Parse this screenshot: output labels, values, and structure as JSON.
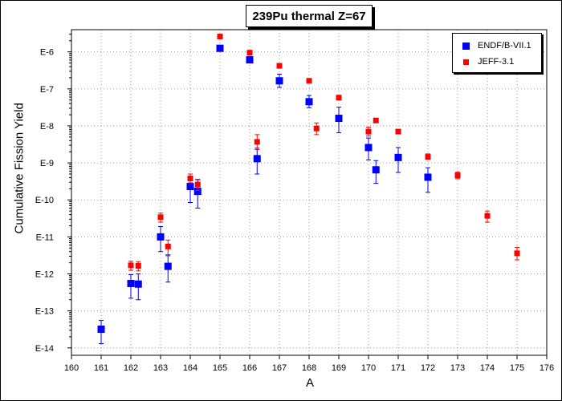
{
  "title": "239Pu thermal Z=67",
  "chart_data": {
    "type": "scatter",
    "title": "239Pu thermal Z=67",
    "xlabel": "A",
    "ylabel": "Cumulative Fission Yield",
    "xlim": [
      160,
      176
    ],
    "ylim_log10": [
      -14.2,
      -5.4
    ],
    "y_scale": "log",
    "x_ticks": [
      "160",
      "161",
      "162",
      "163",
      "164",
      "165",
      "166",
      "167",
      "168",
      "169",
      "170",
      "171",
      "172",
      "173",
      "174",
      "175",
      "176"
    ],
    "y_ticks": [
      {
        "exp": -6,
        "label": "E-6"
      },
      {
        "exp": -7,
        "label": "E-7"
      },
      {
        "exp": -8,
        "label": "E-8"
      },
      {
        "exp": -9,
        "label": "E-9"
      },
      {
        "exp": -10,
        "label": "E-10"
      },
      {
        "exp": -11,
        "label": "E-11"
      },
      {
        "exp": -12,
        "label": "E-12"
      },
      {
        "exp": -13,
        "label": "E-13"
      },
      {
        "exp": -14,
        "label": "E-14"
      }
    ],
    "grid": true,
    "legend_position": "top-right",
    "series": [
      {
        "name": "ENDF/B-VII.1",
        "color": "#0000ff",
        "marker": "square-large",
        "points": [
          {
            "x": 161,
            "y": 3.2e-14,
            "err_lo": 1.3e-14,
            "err_hi": 5.5e-14
          },
          {
            "x": 162,
            "y": 5.5e-13,
            "err_lo": 2.2e-13,
            "err_hi": 9.5e-13
          },
          {
            "x": 162.25,
            "y": 5.3e-13,
            "err_lo": 2e-13,
            "err_hi": 1e-12
          },
          {
            "x": 163,
            "y": 1e-11,
            "err_lo": 4e-12,
            "err_hi": 1.9e-11
          },
          {
            "x": 163.25,
            "y": 1.6e-12,
            "err_lo": 6e-13,
            "err_hi": 3.1e-12
          },
          {
            "x": 164,
            "y": 2.3e-10,
            "err_lo": 8.5e-11,
            "err_hi": 4.4e-10
          },
          {
            "x": 164.25,
            "y": 1.7e-10,
            "err_lo": 6e-11,
            "err_hi": 3.5e-10
          },
          {
            "x": 165,
            "y": 1.25e-06
          },
          {
            "x": 166,
            "y": 6.1e-07
          },
          {
            "x": 166.25,
            "y": 1.3e-09,
            "err_lo": 5e-10,
            "err_hi": 2.5e-09
          },
          {
            "x": 167,
            "y": 1.65e-07,
            "err_lo": 1.1e-07,
            "err_hi": 2.5e-07
          },
          {
            "x": 168,
            "y": 4.5e-08,
            "err_lo": 3.1e-08,
            "err_hi": 6.6e-08
          },
          {
            "x": 169,
            "y": 1.6e-08,
            "err_lo": 6.5e-09,
            "err_hi": 3.2e-08
          },
          {
            "x": 170,
            "y": 2.6e-09,
            "err_lo": 1.2e-09,
            "err_hi": 4.7e-09
          },
          {
            "x": 170.25,
            "y": 6.5e-10,
            "err_lo": 2.8e-10,
            "err_hi": 1.15e-09
          },
          {
            "x": 171,
            "y": 1.4e-09,
            "err_lo": 5.5e-10,
            "err_hi": 2.6e-09
          },
          {
            "x": 172,
            "y": 4.1e-10,
            "err_lo": 1.6e-10,
            "err_hi": 7.4e-10
          }
        ]
      },
      {
        "name": "JEFF-3.1",
        "color": "#ff0000",
        "marker": "square-small",
        "points": [
          {
            "x": 162,
            "y": 1.7e-12,
            "err_lo": 1.25e-12,
            "err_hi": 2.2e-12
          },
          {
            "x": 162.25,
            "y": 1.65e-12,
            "err_lo": 1.2e-12,
            "err_hi": 2.15e-12
          },
          {
            "x": 163,
            "y": 3.4e-11,
            "err_lo": 2.5e-11,
            "err_hi": 4.4e-11
          },
          {
            "x": 163.25,
            "y": 5.5e-12,
            "err_lo": 3.3e-12,
            "err_hi": 8.2e-12
          },
          {
            "x": 164,
            "y": 3.8e-10,
            "err_lo": 2.9e-10,
            "err_hi": 5e-10
          },
          {
            "x": 164.25,
            "y": 2.6e-10,
            "err_lo": 1.8e-10,
            "err_hi": 3.6e-10
          },
          {
            "x": 165,
            "y": 2.6e-06
          },
          {
            "x": 166,
            "y": 9.5e-07
          },
          {
            "x": 166.25,
            "y": 3.7e-09,
            "err_lo": 2.3e-09,
            "err_hi": 5.8e-09
          },
          {
            "x": 167,
            "y": 4.2e-07
          },
          {
            "x": 168,
            "y": 1.65e-07
          },
          {
            "x": 168.25,
            "y": 8.5e-09,
            "err_lo": 5.8e-09,
            "err_hi": 1.2e-08
          },
          {
            "x": 169,
            "y": 5.8e-08
          },
          {
            "x": 170,
            "y": 7e-09,
            "err_lo": 5.3e-09,
            "err_hi": 9.2e-09
          },
          {
            "x": 170.25,
            "y": 1.4e-08
          },
          {
            "x": 171,
            "y": 7e-09
          },
          {
            "x": 172,
            "y": 1.45e-09,
            "err_lo": 1.25e-09,
            "err_hi": 1.75e-09
          },
          {
            "x": 173,
            "y": 4.6e-10,
            "err_lo": 3.7e-10,
            "err_hi": 5.6e-10
          },
          {
            "x": 174,
            "y": 3.7e-11,
            "err_lo": 2.5e-11,
            "err_hi": 5e-11
          },
          {
            "x": 175,
            "y": 3.6e-12,
            "err_lo": 2.4e-12,
            "err_hi": 5.2e-12
          }
        ]
      }
    ]
  }
}
